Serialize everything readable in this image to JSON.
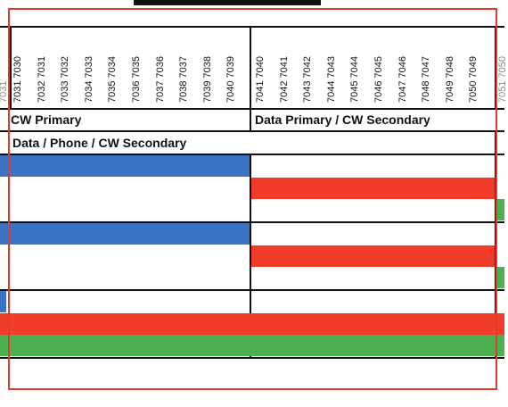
{
  "sheet": {
    "columns_left": [
      "7031 7030",
      "7032 7031",
      "7033 7032",
      "7034 7033",
      "7035 7034",
      "7036 7035",
      "7037 7036",
      "7038 7037",
      "7039 7038",
      "7040 7039"
    ],
    "columns_right": [
      "7041 7040",
      "7042 7041",
      "7043 7042",
      "7044 7043",
      "7045 7044",
      "7046 7045",
      "7047 7046",
      "7048 7047",
      "7049 7048",
      "7050 7049"
    ],
    "left_partial_label": "7031",
    "right_partial_label": "7051 7050",
    "section_a_label": "CW Primary",
    "section_b_label": "Data Primary / CW Secondary",
    "row_label": "Data / Phone / CW Secondary"
  },
  "colors": {
    "blue": "#3a72c4",
    "red": "#f03c28",
    "green": "#4caf50",
    "frame": "#e03b2b"
  }
}
